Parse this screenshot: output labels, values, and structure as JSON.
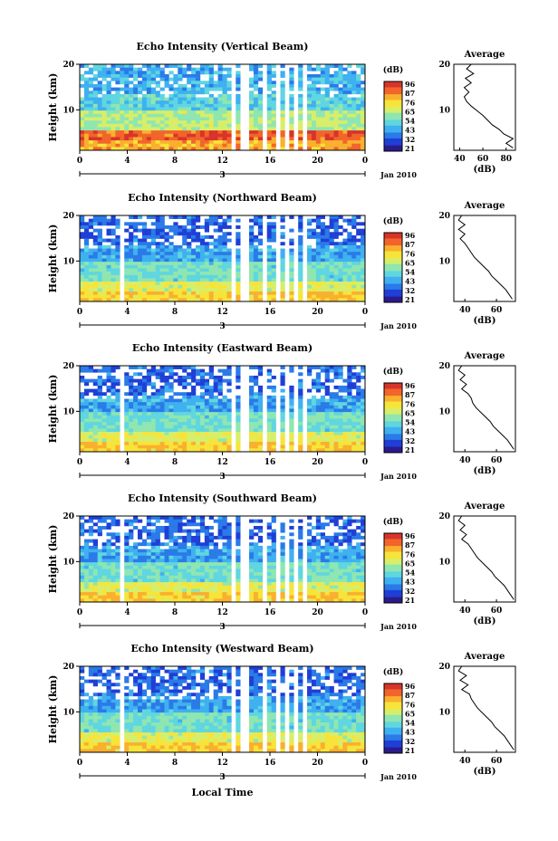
{
  "figure": {
    "xlabel_common": "Local Time",
    "colorbar_unit": "(dB)",
    "colorbar_ticks": [
      "96",
      "87",
      "76",
      "65",
      "54",
      "43",
      "32",
      "21"
    ],
    "colormap": [
      "#2b1a8c",
      "#1f3fd6",
      "#2a7ae8",
      "#3fb0f0",
      "#5fd6e0",
      "#8fe6b0",
      "#d7ee6a",
      "#f7e43a",
      "#f9b02e",
      "#f2652a",
      "#d8342a"
    ],
    "time_ticks": [
      "0",
      "4",
      "8",
      "12",
      "16",
      "20",
      "0"
    ],
    "date_labels": {
      "day": "3",
      "month": "Jan 2010"
    },
    "height_ticks": [
      "20",
      "10"
    ],
    "ylabel": "Height (km)",
    "avg_title": "Average",
    "avg_xlabel": "(dB)"
  },
  "chart_data": [
    {
      "type": "heatmap",
      "title": "Echo Intensity (Vertical Beam)",
      "xlabel": "Local Time",
      "ylabel": "Height (km)",
      "xlim": [
        0,
        24
      ],
      "ylim": [
        1.5,
        20
      ],
      "color_range": [
        21,
        96
      ],
      "avg_profile": {
        "xticks": [
          "40",
          "60",
          "80"
        ],
        "xlim": [
          35,
          88
        ],
        "points": [
          [
            50,
            20
          ],
          [
            46,
            19
          ],
          [
            52,
            18
          ],
          [
            45,
            17
          ],
          [
            50,
            16
          ],
          [
            44,
            15
          ],
          [
            48,
            14
          ],
          [
            44,
            13
          ],
          [
            46,
            12
          ],
          [
            50,
            11
          ],
          [
            55,
            10
          ],
          [
            60,
            9
          ],
          [
            64,
            8
          ],
          [
            68,
            7
          ],
          [
            74,
            6
          ],
          [
            78,
            5
          ],
          [
            86,
            4
          ],
          [
            80,
            3
          ],
          [
            86,
            2
          ]
        ]
      }
    },
    {
      "type": "heatmap",
      "title": "Echo Intensity (Northward Beam)",
      "xlabel": "Local Time",
      "ylabel": "Height (km)",
      "xlim": [
        0,
        24
      ],
      "ylim": [
        1.5,
        20
      ],
      "color_range": [
        21,
        96
      ],
      "avg_profile": {
        "xticks": [
          "40",
          "60"
        ],
        "xlim": [
          33,
          72
        ],
        "points": [
          [
            38,
            20
          ],
          [
            36,
            19
          ],
          [
            40,
            18
          ],
          [
            36,
            17
          ],
          [
            40,
            16
          ],
          [
            37,
            15
          ],
          [
            40,
            14
          ],
          [
            42,
            13
          ],
          [
            44,
            12
          ],
          [
            46,
            11
          ],
          [
            49,
            10
          ],
          [
            52,
            9
          ],
          [
            55,
            8
          ],
          [
            57,
            7
          ],
          [
            60,
            6
          ],
          [
            63,
            5
          ],
          [
            66,
            4
          ],
          [
            68,
            3
          ],
          [
            70,
            2
          ]
        ]
      }
    },
    {
      "type": "heatmap",
      "title": "Echo Intensity (Eastward Beam)",
      "xlabel": "Local Time",
      "ylabel": "Height (km)",
      "xlim": [
        0,
        24
      ],
      "ylim": [
        1.5,
        20
      ],
      "color_range": [
        21,
        96
      ],
      "avg_profile": {
        "xticks": [
          "40",
          "60"
        ],
        "xlim": [
          33,
          72
        ],
        "points": [
          [
            38,
            20
          ],
          [
            36,
            19
          ],
          [
            40,
            18
          ],
          [
            37,
            17
          ],
          [
            41,
            16
          ],
          [
            38,
            15
          ],
          [
            42,
            14
          ],
          [
            44,
            13
          ],
          [
            45,
            12
          ],
          [
            47,
            11
          ],
          [
            50,
            10
          ],
          [
            53,
            9
          ],
          [
            56,
            8
          ],
          [
            58,
            7
          ],
          [
            61,
            6
          ],
          [
            64,
            5
          ],
          [
            67,
            4
          ],
          [
            69,
            3
          ],
          [
            71,
            2
          ]
        ]
      }
    },
    {
      "type": "heatmap",
      "title": "Echo Intensity (Southward Beam)",
      "xlabel": "Local Time",
      "ylabel": "Height (km)",
      "xlim": [
        0,
        24
      ],
      "ylim": [
        1.5,
        20
      ],
      "color_range": [
        21,
        96
      ],
      "avg_profile": {
        "xticks": [
          "40",
          "60"
        ],
        "xlim": [
          33,
          72
        ],
        "points": [
          [
            38,
            20
          ],
          [
            36,
            19
          ],
          [
            40,
            18
          ],
          [
            37,
            17
          ],
          [
            41,
            16
          ],
          [
            38,
            15
          ],
          [
            42,
            14
          ],
          [
            44,
            13
          ],
          [
            46,
            12
          ],
          [
            48,
            11
          ],
          [
            51,
            10
          ],
          [
            54,
            9
          ],
          [
            57,
            8
          ],
          [
            59,
            7
          ],
          [
            62,
            6
          ],
          [
            65,
            5
          ],
          [
            67,
            4
          ],
          [
            69,
            3
          ],
          [
            71,
            2
          ]
        ]
      }
    },
    {
      "type": "heatmap",
      "title": "Echo Intensity (Westward Beam)",
      "xlabel": "Local Time",
      "ylabel": "Height (km)",
      "xlim": [
        0,
        24
      ],
      "ylim": [
        1.5,
        20
      ],
      "color_range": [
        21,
        96
      ],
      "avg_profile": {
        "xticks": [
          "40",
          "60"
        ],
        "xlim": [
          33,
          72
        ],
        "points": [
          [
            38,
            20
          ],
          [
            36,
            19
          ],
          [
            41,
            18
          ],
          [
            37,
            17
          ],
          [
            42,
            16
          ],
          [
            38,
            15
          ],
          [
            43,
            14
          ],
          [
            44,
            13
          ],
          [
            46,
            12
          ],
          [
            48,
            11
          ],
          [
            51,
            10
          ],
          [
            54,
            9
          ],
          [
            57,
            8
          ],
          [
            59,
            7
          ],
          [
            62,
            6
          ],
          [
            65,
            5
          ],
          [
            67,
            4
          ],
          [
            69,
            3
          ],
          [
            71,
            2
          ]
        ]
      }
    }
  ]
}
